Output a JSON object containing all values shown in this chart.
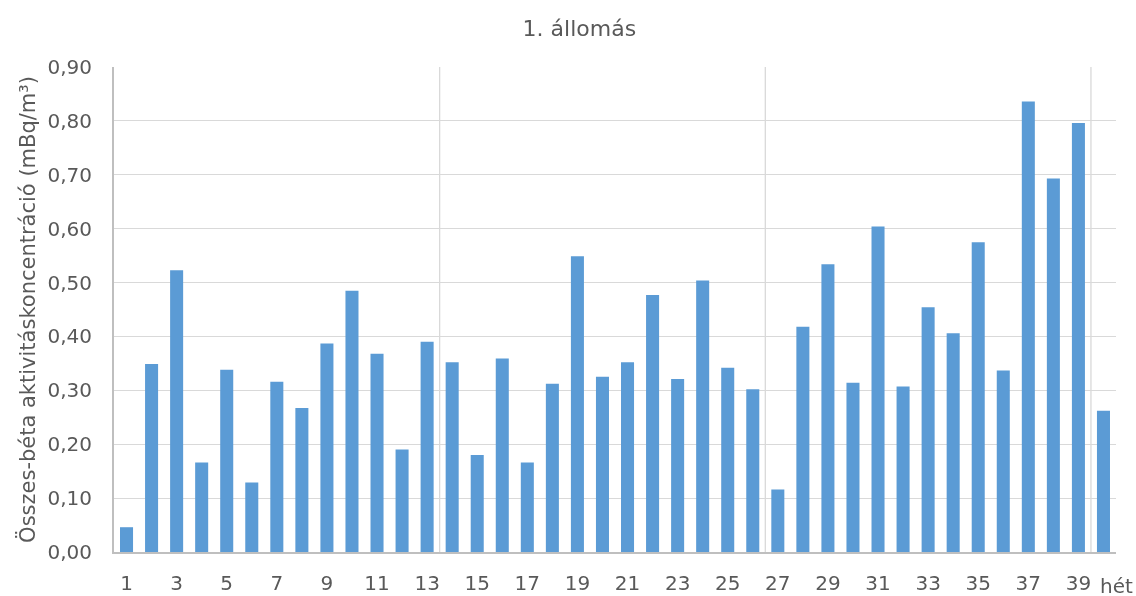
{
  "chart_data": {
    "type": "bar",
    "title": "1. állomás",
    "xlabel": "hét",
    "ylabel": "Összes-béta aktivitáskoncentráció (mBq/m³)",
    "x": [
      1,
      2,
      3,
      4,
      5,
      6,
      7,
      8,
      9,
      10,
      11,
      12,
      13,
      14,
      15,
      16,
      17,
      18,
      19,
      20,
      21,
      22,
      23,
      24,
      25,
      26,
      27,
      28,
      29,
      30,
      31,
      32,
      33,
      34,
      35,
      36,
      37,
      38,
      39,
      40
    ],
    "values": [
      0.046,
      0.349,
      0.523,
      0.166,
      0.338,
      0.129,
      0.316,
      0.267,
      0.387,
      0.485,
      0.368,
      0.19,
      0.39,
      0.352,
      0.18,
      0.359,
      0.166,
      0.312,
      0.549,
      0.325,
      0.352,
      0.477,
      0.321,
      0.504,
      0.342,
      0.302,
      0.116,
      0.418,
      0.534,
      0.314,
      0.604,
      0.307,
      0.454,
      0.406,
      0.575,
      0.337,
      0.836,
      0.693,
      0.796,
      0.262
    ],
    "color": "#5b9bd5",
    "xlim": [
      0.5,
      40.5
    ],
    "xticks": [
      1,
      3,
      5,
      7,
      9,
      11,
      13,
      15,
      17,
      19,
      21,
      23,
      25,
      27,
      29,
      31,
      33,
      35,
      37,
      39
    ],
    "ylim": [
      0,
      0.9
    ],
    "yticks": [
      {
        "value": 0,
        "label": "0,00"
      },
      {
        "value": 0.1,
        "label": "0,10"
      },
      {
        "value": 0.2,
        "label": "0,20"
      },
      {
        "value": 0.3,
        "label": "0,30"
      },
      {
        "value": 0.4,
        "label": "0,40"
      },
      {
        "value": 0.5,
        "label": "0,50"
      },
      {
        "value": 0.6,
        "label": "0,60"
      },
      {
        "value": 0.7,
        "label": "0,70"
      },
      {
        "value": 0.8,
        "label": "0,80"
      },
      {
        "value": 0.9,
        "label": "0,90"
      }
    ],
    "grid": "y",
    "ref_lines": [
      {
        "axis": "x",
        "value": 13.5,
        "color": "#d9d9d9"
      },
      {
        "axis": "x",
        "value": 26.5,
        "color": "#d9d9d9"
      },
      {
        "axis": "x",
        "value": 39.5,
        "color": "#d9d9d9"
      }
    ]
  }
}
